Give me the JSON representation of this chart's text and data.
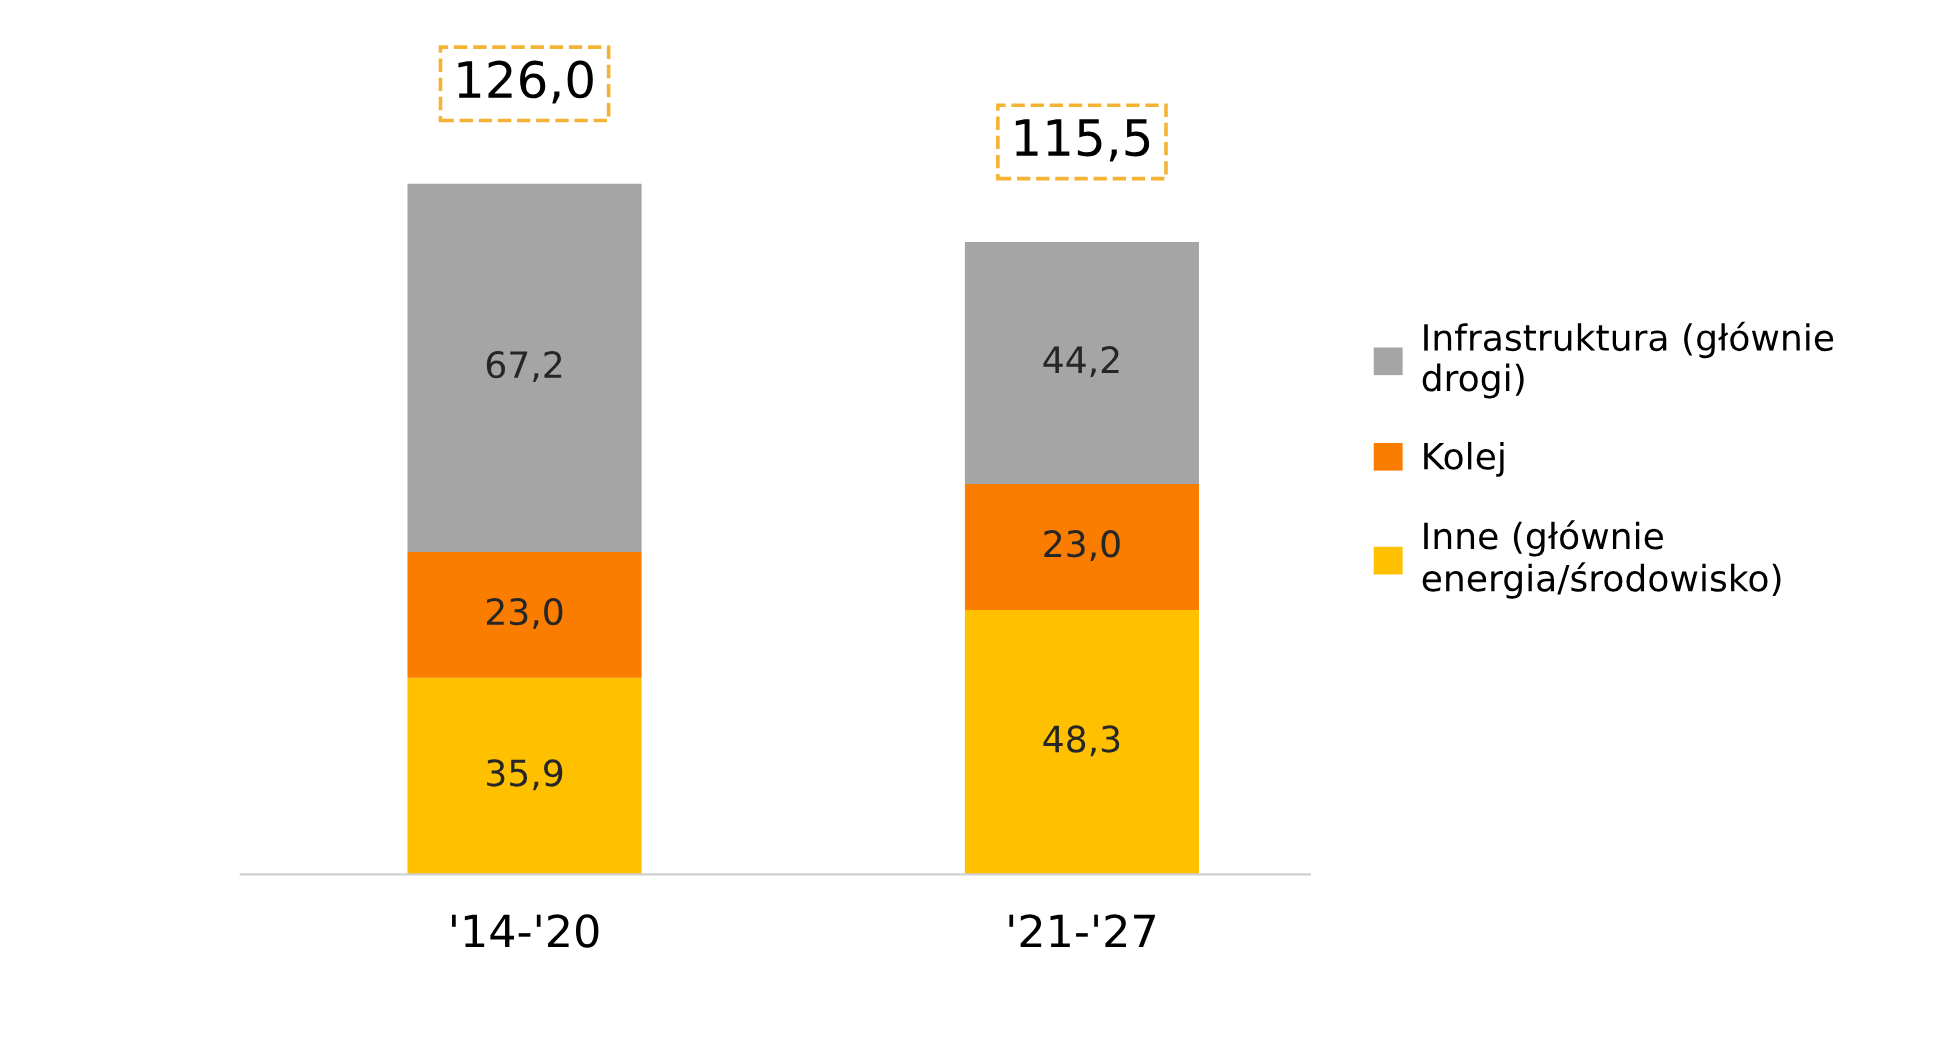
{
  "chart_data": {
    "type": "bar",
    "stacked": true,
    "categories": [
      "'14-'20",
      "'21-'27"
    ],
    "ylim": [
      0,
      140
    ],
    "series": [
      {
        "name": "Inne (głównie\nenergia/środowisko)",
        "color": "#ffc000",
        "values": [
          35.9,
          48.3
        ],
        "value_labels": [
          "35,9",
          "48,3"
        ]
      },
      {
        "name": "Kolej",
        "color": "#fa7d00",
        "values": [
          23.0,
          23.0
        ],
        "value_labels": [
          "23,0",
          "23,0"
        ]
      },
      {
        "name": "Infrastruktura (głównie\ndrogi)",
        "color": "#a5a5a5",
        "values": [
          67.2,
          44.2
        ],
        "value_labels": [
          "67,2",
          "44,2"
        ]
      }
    ],
    "totals": [
      "126,0",
      "115,5"
    ],
    "legend": "right",
    "grid": false
  }
}
